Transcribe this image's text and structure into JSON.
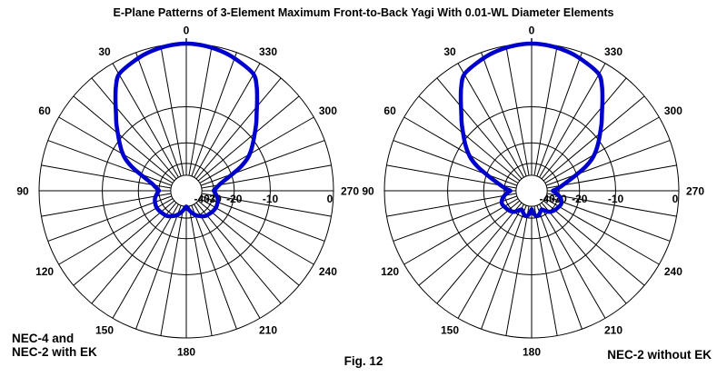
{
  "title": "E-Plane Patterns of 3-Element Maximum Front-to-Back Yagi With 0.01-WL Diameter Elements",
  "figure_number": "Fig. 12",
  "captions": {
    "left_line1": "NEC-4 and",
    "left_line2": "NEC-2 with EK",
    "right": "NEC-2 without EK"
  },
  "colors": {
    "pattern_line": "#0000CD",
    "grid_line": "#000000",
    "background": "#FFFFFF",
    "text": "#000000"
  },
  "chart_data": [
    {
      "type": "line",
      "polar": true,
      "name": "NEC-4 and NEC-2 with EK",
      "zero_angle_position": "top",
      "angle_direction": "counterclockwise",
      "angle_ticks_deg": [
        0,
        30,
        60,
        90,
        120,
        150,
        180,
        210,
        240,
        270,
        300,
        330
      ],
      "radial_ticks_db": [
        0,
        -10,
        -20,
        -30,
        -40
      ],
      "radial_scale": "logarithmic",
      "radial_scale_ratio_per_10db": 0.5707,
      "outer_ring_db": 0,
      "symmetric_about_0_180_axis": true,
      "points_deg_db": [
        [
          0,
          0
        ],
        [
          8,
          -0.15
        ],
        [
          16,
          -0.5
        ],
        [
          23,
          -1.0
        ],
        [
          30,
          -1.6
        ],
        [
          34,
          -2.8
        ],
        [
          38,
          -4.4
        ],
        [
          42,
          -6.0
        ],
        [
          46,
          -7.4
        ],
        [
          50,
          -8.9
        ],
        [
          54,
          -10.3
        ],
        [
          58,
          -11.7
        ],
        [
          62,
          -13.4
        ],
        [
          66,
          -16.0
        ],
        [
          70,
          -19.5
        ],
        [
          74,
          -22.8
        ],
        [
          78,
          -25.5
        ],
        [
          82,
          -27.3
        ],
        [
          86,
          -28.8
        ],
        [
          88,
          -29.6
        ],
        [
          90,
          -30.0
        ],
        [
          93,
          -29.2
        ],
        [
          96,
          -28.6
        ],
        [
          103,
          -27.2
        ],
        [
          110,
          -26.5
        ],
        [
          118,
          -26.1
        ],
        [
          126,
          -26.3
        ],
        [
          134,
          -26.8
        ],
        [
          142,
          -27.3
        ],
        [
          150,
          -28.7
        ],
        [
          158,
          -30.6
        ],
        [
          165,
          -33.0
        ],
        [
          171,
          -35.8
        ],
        [
          176,
          -38.2
        ],
        [
          180,
          -39.8
        ]
      ]
    },
    {
      "type": "line",
      "polar": true,
      "name": "NEC-2 without EK",
      "zero_angle_position": "top",
      "angle_direction": "counterclockwise",
      "angle_ticks_deg": [
        0,
        30,
        60,
        90,
        120,
        150,
        180,
        210,
        240,
        270,
        300,
        330
      ],
      "radial_ticks_db": [
        0,
        -10,
        -20,
        -30,
        -40
      ],
      "radial_scale": "logarithmic",
      "radial_scale_ratio_per_10db": 0.5707,
      "outer_ring_db": 0,
      "symmetric_about_0_180_axis": true,
      "points_deg_db": [
        [
          0,
          0
        ],
        [
          8,
          -0.15
        ],
        [
          16,
          -0.5
        ],
        [
          23,
          -1.0
        ],
        [
          30,
          -1.6
        ],
        [
          34,
          -2.8
        ],
        [
          38,
          -4.4
        ],
        [
          42,
          -6.0
        ],
        [
          46,
          -7.4
        ],
        [
          50,
          -8.9
        ],
        [
          54,
          -10.3
        ],
        [
          58,
          -11.8
        ],
        [
          62,
          -13.6
        ],
        [
          66,
          -16.3
        ],
        [
          70,
          -19.9
        ],
        [
          74,
          -23.3
        ],
        [
          78,
          -26.3
        ],
        [
          82,
          -28.8
        ],
        [
          86,
          -31.5
        ],
        [
          88,
          -33.2
        ],
        [
          90,
          -34.5
        ],
        [
          92,
          -33.6
        ],
        [
          95,
          -32.0
        ],
        [
          101,
          -29.5
        ],
        [
          107,
          -27.8
        ],
        [
          114,
          -27.0
        ],
        [
          121,
          -27.5
        ],
        [
          128,
          -28.1
        ],
        [
          135,
          -28.9
        ],
        [
          141,
          -30.3
        ],
        [
          147,
          -32.8
        ],
        [
          152,
          -34.5
        ],
        [
          157,
          -33.3
        ],
        [
          163,
          -31.6
        ],
        [
          168,
          -31.0
        ],
        [
          172,
          -31.9
        ],
        [
          176,
          -33.9
        ],
        [
          180,
          -36.8
        ]
      ]
    }
  ]
}
